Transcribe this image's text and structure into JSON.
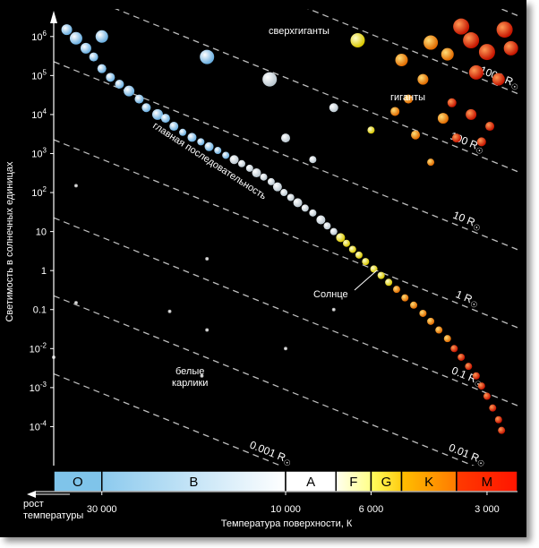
{
  "chart_data": {
    "type": "scatter",
    "title": "",
    "xlabel": "Температура поверхности, К",
    "ylabel": "Светимость в солнечных единицах",
    "x_direction_note": "рост температуры",
    "x_scale": "log",
    "y_scale": "log",
    "xlim_temperature_K": [
      40000,
      2500
    ],
    "ylim_luminosity": [
      1e-05,
      3000000
    ],
    "x_ticks": [
      "30 000",
      "10 000",
      "6 000",
      "3 000"
    ],
    "x_tick_values": [
      30000,
      10000,
      6000,
      3000
    ],
    "y_ticks": [
      {
        "base": "10",
        "exp": "6",
        "value": 1000000
      },
      {
        "base": "10",
        "exp": "5",
        "value": 100000
      },
      {
        "base": "10",
        "exp": "4",
        "value": 10000
      },
      {
        "base": "10",
        "exp": "3",
        "value": 1000
      },
      {
        "base": "10",
        "exp": "2",
        "value": 100
      },
      {
        "base": "10",
        "exp": "",
        "value": 10
      },
      {
        "base": "1",
        "exp": "",
        "value": 1
      },
      {
        "base": "0.1",
        "exp": "",
        "value": 0.1
      },
      {
        "base": "10",
        "exp": "-2",
        "value": 0.01
      },
      {
        "base": "10",
        "exp": "-3",
        "value": 0.001
      },
      {
        "base": "10",
        "exp": "-4",
        "value": 0.0001
      }
    ],
    "spectral_classes": [
      {
        "label": "O",
        "t_from": 40000,
        "t_to": 30000,
        "color_a": "#7fc4ea",
        "color_b": "#7fc4ea"
      },
      {
        "label": "B",
        "t_from": 30000,
        "t_to": 10000,
        "color_a": "#8ccaee",
        "color_b": "#ffffff"
      },
      {
        "label": "A",
        "t_from": 10000,
        "t_to": 7400,
        "color_a": "#ffffff",
        "color_b": "#ffffff"
      },
      {
        "label": "F",
        "t_from": 7400,
        "t_to": 6000,
        "color_a": "#fffff0",
        "color_b": "#ffff88"
      },
      {
        "label": "G",
        "t_from": 6000,
        "t_to": 5000,
        "color_a": "#ffff60",
        "color_b": "#ffcc10"
      },
      {
        "label": "K",
        "t_from": 5000,
        "t_to": 3600,
        "color_a": "#ffbf00",
        "color_b": "#ff7a00"
      },
      {
        "label": "M",
        "t_from": 3600,
        "t_to": 2500,
        "color_a": "#ff3a00",
        "color_b": "#ff1500"
      }
    ],
    "radius_lines": [
      {
        "label": "1000 R",
        "radius_solar": 1000,
        "show_label": true
      },
      {
        "label": "100 R",
        "radius_solar": 100,
        "show_label": true
      },
      {
        "label": "10 R",
        "radius_solar": 10,
        "show_label": true
      },
      {
        "label": "1 R",
        "radius_solar": 1,
        "show_label": true
      },
      {
        "label": "0.1 R",
        "radius_solar": 0.1,
        "show_label": true
      },
      {
        "label": "0.01 R",
        "radius_solar": 0.01,
        "show_label": true
      },
      {
        "label": "0.001 R",
        "radius_solar": 0.001,
        "show_label": true
      },
      {
        "label": "",
        "radius_solar": 10000,
        "show_label": false
      }
    ],
    "solar_subscript": "☉",
    "annotations": {
      "supergiants": "сверхгиганты",
      "giants": "гиганты",
      "main_sequence": "главная последовательность",
      "white_dwarfs_line1": "белые",
      "white_dwarfs_line2": "карлики",
      "sun": "Солнце"
    },
    "series": [
      {
        "name": "главная последовательность",
        "points": [
          {
            "t": 37000,
            "l": 1500000,
            "r": 6
          },
          {
            "t": 35000,
            "l": 900000,
            "r": 7
          },
          {
            "t": 33000,
            "l": 500000,
            "r": 6
          },
          {
            "t": 31500,
            "l": 300000,
            "r": 5
          },
          {
            "t": 30000,
            "l": 150000,
            "r": 5
          },
          {
            "t": 28500,
            "l": 90000,
            "r": 5
          },
          {
            "t": 27000,
            "l": 60000,
            "r": 5
          },
          {
            "t": 25500,
            "l": 40000,
            "r": 6
          },
          {
            "t": 24000,
            "l": 25000,
            "r": 5
          },
          {
            "t": 23000,
            "l": 15000,
            "r": 5
          },
          {
            "t": 21500,
            "l": 10000,
            "r": 6
          },
          {
            "t": 20500,
            "l": 8000,
            "r": 5
          },
          {
            "t": 19500,
            "l": 5000,
            "r": 5
          },
          {
            "t": 18500,
            "l": 3500,
            "r": 4
          },
          {
            "t": 17500,
            "l": 2600,
            "r": 5
          },
          {
            "t": 16600,
            "l": 2000,
            "r": 4
          },
          {
            "t": 15800,
            "l": 1500,
            "r": 5
          },
          {
            "t": 15000,
            "l": 1200,
            "r": 4
          },
          {
            "t": 14300,
            "l": 900,
            "r": 4
          },
          {
            "t": 13600,
            "l": 700,
            "r": 5
          },
          {
            "t": 13000,
            "l": 550,
            "r": 4
          },
          {
            "t": 12400,
            "l": 420,
            "r": 4
          },
          {
            "t": 11900,
            "l": 320,
            "r": 5
          },
          {
            "t": 11400,
            "l": 250,
            "r": 4
          },
          {
            "t": 10900,
            "l": 190,
            "r": 4
          },
          {
            "t": 10500,
            "l": 140,
            "r": 5
          },
          {
            "t": 10100,
            "l": 100,
            "r": 4
          },
          {
            "t": 9700,
            "l": 75,
            "r": 4
          },
          {
            "t": 9300,
            "l": 55,
            "r": 5
          },
          {
            "t": 8900,
            "l": 40,
            "r": 4
          },
          {
            "t": 8500,
            "l": 30,
            "r": 4
          },
          {
            "t": 8100,
            "l": 20,
            "r": 5
          },
          {
            "t": 7800,
            "l": 14,
            "r": 4
          },
          {
            "t": 7500,
            "l": 10,
            "r": 4
          },
          {
            "t": 7200,
            "l": 7,
            "r": 5
          },
          {
            "t": 6950,
            "l": 5,
            "r": 4
          },
          {
            "t": 6700,
            "l": 3.5,
            "r": 4
          },
          {
            "t": 6450,
            "l": 2.5,
            "r": 4
          },
          {
            "t": 6200,
            "l": 1.7,
            "r": 4
          },
          {
            "t": 5900,
            "l": 1.1,
            "r": 4
          },
          {
            "t": 5650,
            "l": 0.75,
            "r": 4
          },
          {
            "t": 5400,
            "l": 0.5,
            "r": 4
          },
          {
            "t": 5150,
            "l": 0.33,
            "r": 4
          },
          {
            "t": 4900,
            "l": 0.2,
            "r": 4
          },
          {
            "t": 4650,
            "l": 0.13,
            "r": 4
          },
          {
            "t": 4400,
            "l": 0.08,
            "r": 4
          },
          {
            "t": 4200,
            "l": 0.05,
            "r": 4
          },
          {
            "t": 4000,
            "l": 0.03,
            "r": 4
          },
          {
            "t": 3800,
            "l": 0.018,
            "r": 4
          },
          {
            "t": 3650,
            "l": 0.01,
            "r": 4
          },
          {
            "t": 3500,
            "l": 0.006,
            "r": 4
          },
          {
            "t": 3350,
            "l": 0.0035,
            "r": 4
          },
          {
            "t": 3200,
            "l": 0.002,
            "r": 4
          },
          {
            "t": 3100,
            "l": 0.0011,
            "r": 4
          },
          {
            "t": 3000,
            "l": 0.0006,
            "r": 4
          },
          {
            "t": 2900,
            "l": 0.0003,
            "r": 4
          },
          {
            "t": 2800,
            "l": 0.00015,
            "r": 4
          },
          {
            "t": 2750,
            "l": 8e-05,
            "r": 4
          }
        ]
      },
      {
        "name": "сверхгиганты",
        "points": [
          {
            "t": 30000,
            "l": 1000000,
            "r": 7
          },
          {
            "t": 16000,
            "l": 300000,
            "r": 8
          },
          {
            "t": 11000,
            "l": 80000,
            "r": 8
          },
          {
            "t": 6500,
            "l": 800000,
            "r": 8
          },
          {
            "t": 5000,
            "l": 250000,
            "r": 7
          },
          {
            "t": 3500,
            "l": 1800000,
            "r": 9
          },
          {
            "t": 3300,
            "l": 800000,
            "r": 9
          },
          {
            "t": 3000,
            "l": 400000,
            "r": 9
          },
          {
            "t": 2700,
            "l": 1500000,
            "r": 9
          },
          {
            "t": 2600,
            "l": 500000,
            "r": 8
          },
          {
            "t": 3800,
            "l": 350000,
            "r": 7
          },
          {
            "t": 4200,
            "l": 700000,
            "r": 8
          },
          {
            "t": 3200,
            "l": 120000,
            "r": 8
          },
          {
            "t": 2800,
            "l": 80000,
            "r": 7
          }
        ]
      },
      {
        "name": "гиганты",
        "points": [
          {
            "t": 10000,
            "l": 2500,
            "r": 5
          },
          {
            "t": 8500,
            "l": 700,
            "r": 4
          },
          {
            "t": 7500,
            "l": 15000,
            "r": 5
          },
          {
            "t": 6000,
            "l": 4000,
            "r": 4
          },
          {
            "t": 5200,
            "l": 12000,
            "r": 5
          },
          {
            "t": 4600,
            "l": 3000,
            "r": 5
          },
          {
            "t": 4200,
            "l": 600,
            "r": 4
          },
          {
            "t": 3900,
            "l": 8000,
            "r": 6
          },
          {
            "t": 3600,
            "l": 2500,
            "r": 5
          },
          {
            "t": 3300,
            "l": 10000,
            "r": 6
          },
          {
            "t": 3100,
            "l": 2000,
            "r": 5
          },
          {
            "t": 2950,
            "l": 5000,
            "r": 5
          },
          {
            "t": 4800,
            "l": 25000,
            "r": 5
          },
          {
            "t": 4400,
            "l": 80000,
            "r": 6
          },
          {
            "t": 3700,
            "l": 20000,
            "r": 5
          }
        ]
      },
      {
        "name": "белые карлики",
        "points": [
          {
            "t": 35000,
            "l": 150,
            "r": 2
          },
          {
            "t": 16000,
            "l": 2,
            "r": 2
          },
          {
            "t": 35000,
            "l": 0.15,
            "r": 2
          },
          {
            "t": 20000,
            "l": 0.09,
            "r": 2
          },
          {
            "t": 16000,
            "l": 0.03,
            "r": 2
          },
          {
            "t": 40000,
            "l": 0.006,
            "r": 2
          },
          {
            "t": 16500,
            "l": 0.002,
            "r": 2
          },
          {
            "t": 10000,
            "l": 0.01,
            "r": 2
          },
          {
            "t": 7500,
            "l": 0.1,
            "r": 2
          }
        ]
      }
    ],
    "sun": {
      "t": 5800,
      "l": 1
    }
  }
}
